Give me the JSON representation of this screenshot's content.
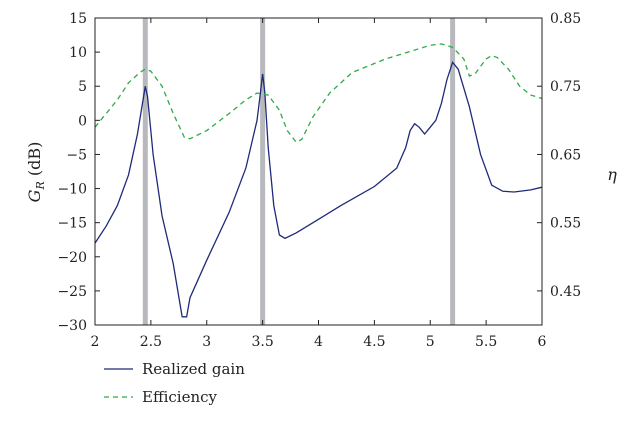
{
  "chart_data": {
    "type": "line",
    "title": "",
    "xlabel": "",
    "ylabel_left": "G_R (dB)",
    "ylabel_right": "η",
    "xlim": [
      2,
      6
    ],
    "ylim_left": [
      -30,
      15
    ],
    "ylim_right": [
      0.4,
      0.85
    ],
    "x_ticks": [
      "2",
      "2.5",
      "3",
      "3.5",
      "4",
      "4.5",
      "5",
      "5.5",
      "6"
    ],
    "y_left_ticks": [
      "15",
      "10",
      "5",
      "0",
      "−5",
      "−10",
      "−15",
      "−20",
      "−25",
      "−30"
    ],
    "y_right_ticks": [
      "0.85",
      "0.75",
      "0.65",
      "0.55",
      "0.45"
    ],
    "grid": false,
    "legend_position": "below",
    "marker_lines_x": [
      2.45,
      3.5,
      5.2
    ],
    "series": [
      {
        "name": "Realized gain",
        "axis": "left",
        "color": "#1f2a7a",
        "style": "solid",
        "points": [
          [
            2,
            -18
          ],
          [
            2.1,
            -15.5
          ],
          [
            2.2,
            -12.5
          ],
          [
            2.3,
            -8
          ],
          [
            2.38,
            -2
          ],
          [
            2.43,
            3
          ],
          [
            2.45,
            5
          ],
          [
            2.47,
            3.5
          ],
          [
            2.52,
            -5
          ],
          [
            2.6,
            -14
          ],
          [
            2.7,
            -21
          ],
          [
            2.78,
            -28.8
          ],
          [
            2.82,
            -28.8
          ],
          [
            2.85,
            -26
          ],
          [
            3,
            -20.5
          ],
          [
            3.2,
            -13.5
          ],
          [
            3.35,
            -7
          ],
          [
            3.45,
            0
          ],
          [
            3.48,
            4
          ],
          [
            3.5,
            6.8
          ],
          [
            3.52,
            4
          ],
          [
            3.55,
            -4
          ],
          [
            3.6,
            -12.5
          ],
          [
            3.65,
            -16.8
          ],
          [
            3.7,
            -17.3
          ],
          [
            3.8,
            -16.5
          ],
          [
            4,
            -14.5
          ],
          [
            4.2,
            -12.5
          ],
          [
            4.5,
            -9.7
          ],
          [
            4.7,
            -7
          ],
          [
            4.78,
            -4
          ],
          [
            4.82,
            -1.5
          ],
          [
            4.86,
            -0.5
          ],
          [
            4.9,
            -1
          ],
          [
            4.95,
            -2
          ],
          [
            5,
            -1
          ],
          [
            5.05,
            0
          ],
          [
            5.1,
            2.5
          ],
          [
            5.15,
            6
          ],
          [
            5.2,
            8.5
          ],
          [
            5.25,
            7.5
          ],
          [
            5.35,
            2
          ],
          [
            5.45,
            -5
          ],
          [
            5.55,
            -9.5
          ],
          [
            5.65,
            -10.4
          ],
          [
            5.75,
            -10.5
          ],
          [
            5.9,
            -10.2
          ],
          [
            6,
            -9.8
          ]
        ]
      },
      {
        "name": "Efficiency",
        "axis": "right",
        "color": "#2eaa4a",
        "style": "dashed",
        "points": [
          [
            2,
            0.69
          ],
          [
            2.1,
            0.71
          ],
          [
            2.2,
            0.73
          ],
          [
            2.3,
            0.755
          ],
          [
            2.4,
            0.77
          ],
          [
            2.45,
            0.775
          ],
          [
            2.5,
            0.772
          ],
          [
            2.6,
            0.75
          ],
          [
            2.7,
            0.71
          ],
          [
            2.8,
            0.675
          ],
          [
            2.85,
            0.673
          ],
          [
            3,
            0.685
          ],
          [
            3.2,
            0.71
          ],
          [
            3.35,
            0.73
          ],
          [
            3.45,
            0.74
          ],
          [
            3.55,
            0.737
          ],
          [
            3.65,
            0.715
          ],
          [
            3.72,
            0.685
          ],
          [
            3.8,
            0.668
          ],
          [
            3.85,
            0.672
          ],
          [
            3.95,
            0.705
          ],
          [
            4.1,
            0.74
          ],
          [
            4.3,
            0.77
          ],
          [
            4.6,
            0.79
          ],
          [
            4.8,
            0.8
          ],
          [
            5,
            0.81
          ],
          [
            5.1,
            0.812
          ],
          [
            5.2,
            0.807
          ],
          [
            5.3,
            0.79
          ],
          [
            5.35,
            0.765
          ],
          [
            5.4,
            0.768
          ],
          [
            5.5,
            0.79
          ],
          [
            5.55,
            0.795
          ],
          [
            5.6,
            0.792
          ],
          [
            5.7,
            0.775
          ],
          [
            5.8,
            0.75
          ],
          [
            5.9,
            0.737
          ],
          [
            6,
            0.732
          ]
        ]
      }
    ]
  }
}
